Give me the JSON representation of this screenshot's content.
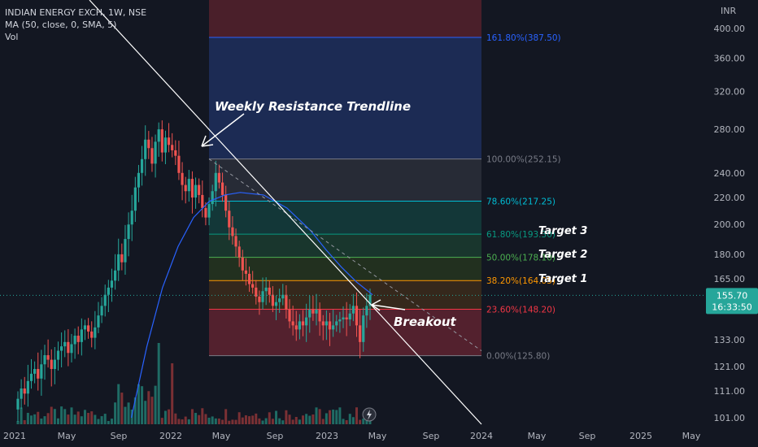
{
  "legend": {
    "title": "INDIAN ENERGY EXCH, 1W, NSE",
    "ma": "MA (50, close, 0, SMA, 5)",
    "vol": "Vol"
  },
  "colors": {
    "background": "#131722",
    "up": "#26a69a",
    "down": "#ef5350",
    "ma": "#2962ff",
    "trendline": "#ffffff"
  },
  "chart_data": {
    "type": "candlestick",
    "symbol": "INDIAN ENERGY EXCH",
    "interval": "1W",
    "exchange": "NSE",
    "currency": "INR",
    "y_scale": "log",
    "y_ticks": [
      101.0,
      111.0,
      121.0,
      133.0,
      155.7,
      165.0,
      180.0,
      200.0,
      220.0,
      240.0,
      280.0,
      320.0,
      360.0,
      400.0
    ],
    "x_ticks": [
      "2021",
      "May",
      "Sep",
      "2022",
      "May",
      "Sep",
      "2023",
      "May",
      "Sep",
      "2024",
      "May",
      "Sep",
      "2025",
      "May"
    ],
    "last_price": "155.70",
    "countdown": "16:33:50",
    "candles_close": [
      108,
      112,
      110,
      115,
      118,
      120,
      116,
      122,
      126,
      124,
      120,
      124,
      128,
      130,
      132,
      127,
      131,
      135,
      132,
      138,
      140,
      137,
      134,
      139,
      145,
      150,
      156,
      160,
      164,
      170,
      180,
      175,
      190,
      200,
      210,
      228,
      240,
      252,
      270,
      262,
      248,
      268,
      280,
      258,
      272,
      265,
      260,
      255,
      240,
      230,
      225,
      235,
      220,
      230,
      222,
      212,
      205,
      215,
      225,
      240,
      232,
      222,
      210,
      198,
      192,
      185,
      178,
      170,
      168,
      162,
      160,
      155,
      152,
      158,
      160,
      156,
      150,
      152,
      154,
      156,
      148,
      142,
      140,
      138,
      142,
      140,
      144,
      148,
      146,
      148,
      142,
      140,
      142,
      138,
      140,
      142,
      143,
      144,
      143,
      146,
      150,
      140,
      132,
      145,
      150,
      156
    ],
    "ma_points": [
      [
        2021.75,
        101
      ],
      [
        2021.85,
        130
      ],
      [
        2021.95,
        160
      ],
      [
        2022.05,
        185
      ],
      [
        2022.15,
        205
      ],
      [
        2022.25,
        217
      ],
      [
        2022.35,
        222
      ],
      [
        2022.45,
        224
      ],
      [
        2022.6,
        222
      ],
      [
        2022.75,
        212
      ],
      [
        2022.9,
        196
      ],
      [
        2023.0,
        183
      ],
      [
        2023.1,
        172
      ],
      [
        2023.2,
        163
      ],
      [
        2023.3,
        156
      ]
    ],
    "fib_levels": [
      {
        "ratio": "0.00%",
        "price": 125.8,
        "label": "0.00%(125.80)",
        "color": "#787b86"
      },
      {
        "ratio": "23.60%",
        "price": 148.2,
        "label": "23.60%(148.20)",
        "color": "#f23645"
      },
      {
        "ratio": "38.20%",
        "price": 164.05,
        "label": "38.20%(164.05)",
        "color": "#ff9800"
      },
      {
        "ratio": "50.00%",
        "price": 178.1,
        "label": "50.00%(178.10)",
        "color": "#4caf50"
      },
      {
        "ratio": "61.80%",
        "price": 193.3,
        "label": "61.80%(193.30)",
        "color": "#089981"
      },
      {
        "ratio": "78.60%",
        "price": 217.25,
        "label": "78.60%(217.25)",
        "color": "#00bcd4"
      },
      {
        "ratio": "100.00%",
        "price": 252.15,
        "label": "100.00%(252.15)",
        "color": "#787b86"
      },
      {
        "ratio": "161.80%",
        "price": 387.5,
        "label": "161.80%(387.50)",
        "color": "#2962ff"
      }
    ]
  },
  "annotations": {
    "trendline": "Weekly Resistance Trendline",
    "breakout": "Breakout",
    "target3": "Target 3",
    "target2": "Target 2",
    "target1": "Target 1"
  },
  "icons": {
    "flash": "lightning-icon"
  }
}
